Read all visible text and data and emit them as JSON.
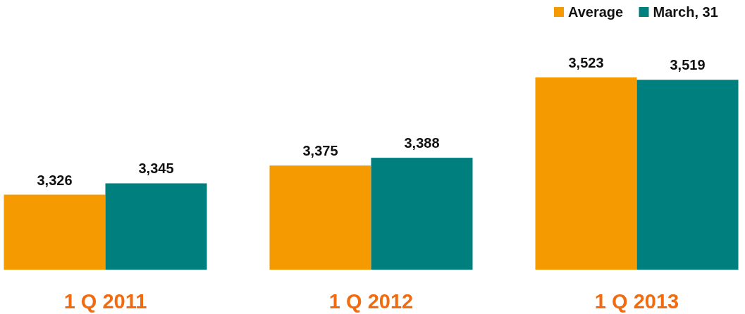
{
  "chart_data": {
    "type": "bar",
    "categories": [
      "1 Q 2011",
      "1 Q 2012",
      "1 Q 2013"
    ],
    "series": [
      {
        "name": "Average",
        "color": "#f59a00",
        "values": [
          3326,
          3375,
          3523
        ],
        "value_labels": [
          "3,326",
          "3,375",
          "3,523"
        ]
      },
      {
        "name": "March, 31",
        "color": "#007f7f",
        "values": [
          3345,
          3388,
          3519
        ],
        "value_labels": [
          "3,345",
          "3,388",
          "3,519"
        ]
      }
    ],
    "ylim": [
      3200,
      3523
    ],
    "tick_labels": "x",
    "legend": "top right"
  }
}
